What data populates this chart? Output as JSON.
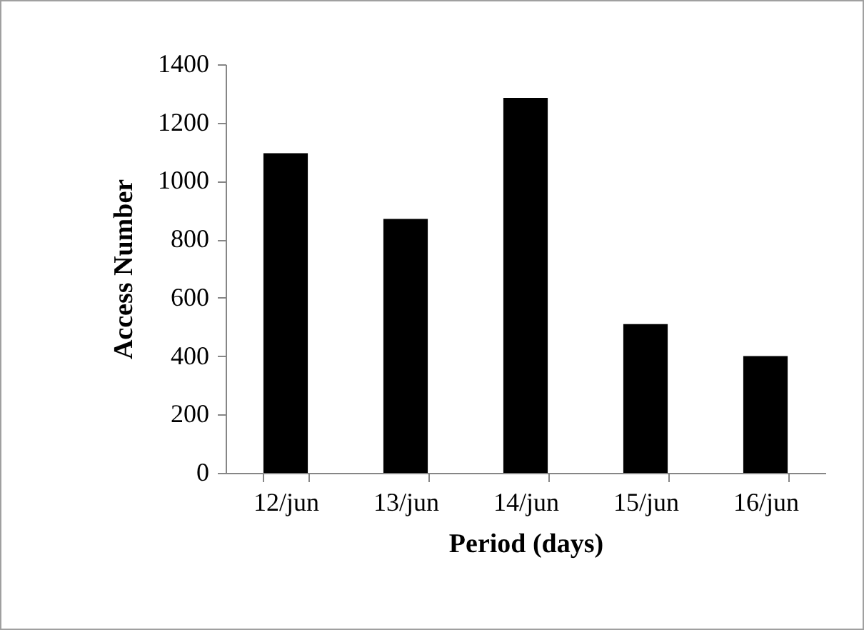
{
  "chart_data": {
    "type": "bar",
    "xlabel": "Period (days)",
    "ylabel": "Access Number",
    "categories": [
      "12/jun",
      "13/jun",
      "14/jun",
      "15/jun",
      "16/jun"
    ],
    "values": [
      1095,
      870,
      1285,
      510,
      400
    ],
    "color": "#000000",
    "ylim": [
      0,
      1400
    ],
    "yticks": [
      0,
      200,
      400,
      600,
      800,
      1000,
      1200,
      1400
    ],
    "grid": false
  }
}
